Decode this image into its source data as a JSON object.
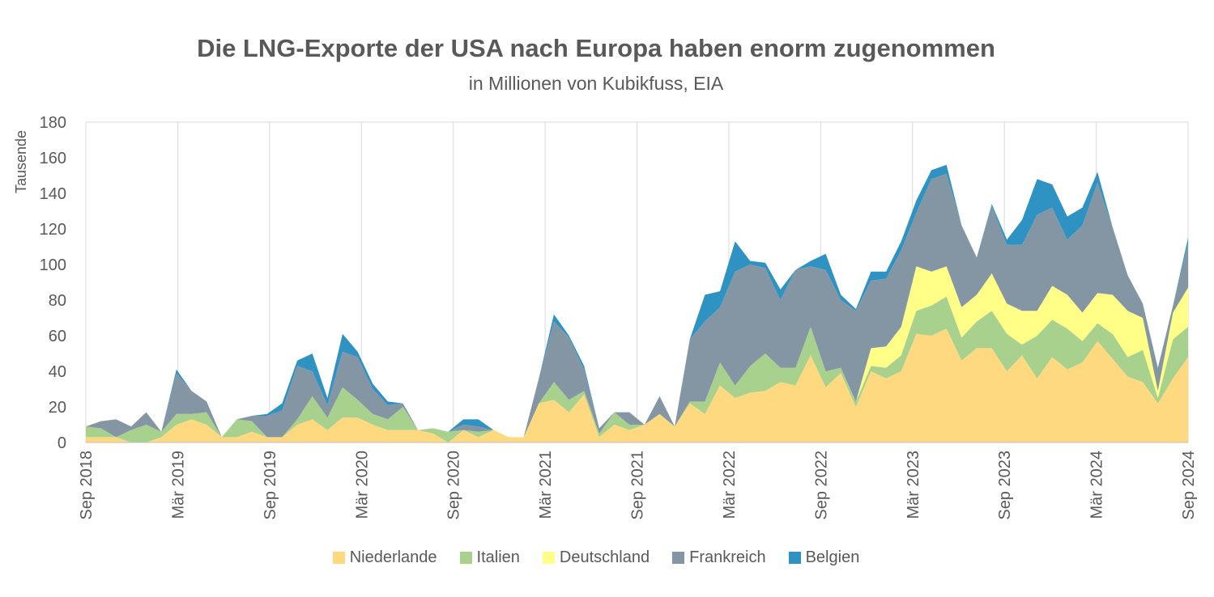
{
  "chart_data": {
    "type": "area",
    "stacked": true,
    "title": "Die LNG-Exporte der USA nach Europa haben enorm zugenommen",
    "subtitle": "in Millionen von Kubikfuss, EIA",
    "ylabel": "Tausende",
    "ylim": [
      0,
      180
    ],
    "yticks": [
      0,
      20,
      40,
      60,
      80,
      100,
      120,
      140,
      160,
      180
    ],
    "xlabel": "",
    "xticks": [
      "Sep 2018",
      "Mär 2019",
      "Sep 2019",
      "Mär 2020",
      "Sep 2020",
      "Mär 2021",
      "Sep 2021",
      "Mär 2022",
      "Sep 2022",
      "Mär 2023",
      "Sep 2023",
      "Mär 2024",
      "Sep 2024"
    ],
    "x_start": "2018-09",
    "x_end": "2024-09",
    "grid": "vertical",
    "legend_position": "bottom",
    "series": [
      {
        "name": "Niederlande",
        "color": "#FFD97F",
        "values": [
          3,
          3,
          3,
          0,
          0,
          3,
          10,
          13,
          10,
          3,
          3,
          6,
          3,
          3,
          10,
          13,
          7,
          14,
          14,
          10,
          7,
          7,
          7,
          5,
          0,
          7,
          3,
          7,
          3,
          3,
          22,
          24,
          17,
          27,
          3,
          10,
          7,
          10,
          16,
          9,
          22,
          16,
          32,
          25,
          28,
          29,
          34,
          32,
          49,
          31,
          39,
          20,
          40,
          36,
          40,
          61,
          60,
          64,
          46,
          53,
          53,
          40,
          49,
          36,
          48,
          41,
          45,
          57,
          47,
          37,
          34,
          22,
          36,
          48
        ]
      },
      {
        "name": "Italien",
        "color": "#A9D18E",
        "values": [
          6,
          5,
          0,
          7,
          10,
          3,
          6,
          3,
          7,
          0,
          10,
          6,
          0,
          0,
          3,
          13,
          7,
          17,
          10,
          6,
          6,
          13,
          0,
          3,
          6,
          0,
          3,
          0,
          0,
          0,
          0,
          10,
          7,
          2,
          2,
          7,
          3,
          0,
          0,
          0,
          1,
          7,
          13,
          7,
          15,
          21,
          8,
          10,
          16,
          9,
          3,
          3,
          3,
          6,
          9,
          13,
          17,
          18,
          13,
          15,
          21,
          21,
          6,
          24,
          21,
          23,
          12,
          10,
          14,
          11,
          18,
          3,
          22,
          17
        ]
      },
      {
        "name": "Deutschland",
        "color": "#FFFF88",
        "values": [
          0,
          0,
          0,
          0,
          0,
          0,
          0,
          0,
          0,
          0,
          0,
          0,
          0,
          0,
          0,
          0,
          0,
          0,
          0,
          0,
          0,
          0,
          0,
          0,
          0,
          0,
          0,
          0,
          0,
          0,
          0,
          0,
          0,
          0,
          0,
          0,
          0,
          0,
          0,
          0,
          0,
          0,
          0,
          0,
          0,
          0,
          0,
          0,
          0,
          0,
          0,
          0,
          10,
          12,
          16,
          25,
          19,
          17,
          17,
          15,
          21,
          17,
          19,
          14,
          19,
          19,
          16,
          17,
          22,
          26,
          18,
          4,
          15,
          22
        ]
      },
      {
        "name": "Frankreich",
        "color": "#8496A4",
        "values": [
          0,
          4,
          10,
          2,
          7,
          0,
          23,
          13,
          6,
          0,
          0,
          3,
          12,
          15,
          30,
          14,
          7,
          20,
          24,
          14,
          8,
          2,
          0,
          0,
          0,
          3,
          3,
          0,
          0,
          0,
          14,
          34,
          35,
          12,
          3,
          0,
          7,
          0,
          10,
          0,
          35,
          45,
          31,
          64,
          57,
          48,
          38,
          55,
          34,
          57,
          38,
          51,
          38,
          38,
          43,
          30,
          52,
          52,
          46,
          21,
          38,
          33,
          37,
          54,
          44,
          31,
          49,
          62,
          38,
          20,
          8,
          13,
          4,
          25
        ]
      },
      {
        "name": "Belgien",
        "color": "#2E93C2",
        "values": [
          0,
          0,
          0,
          0,
          0,
          0,
          2,
          0,
          0,
          0,
          0,
          0,
          1,
          4,
          3,
          10,
          4,
          10,
          3,
          3,
          2,
          0,
          0,
          0,
          0,
          3,
          4,
          0,
          0,
          0,
          0,
          4,
          1,
          2,
          0,
          0,
          0,
          0,
          0,
          0,
          0,
          15,
          9,
          17,
          2,
          3,
          6,
          0,
          3,
          9,
          3,
          1,
          5,
          4,
          5,
          7,
          5,
          5,
          0,
          0,
          1,
          3,
          14,
          20,
          13,
          13,
          10,
          6,
          0,
          0,
          0,
          0,
          0,
          3
        ]
      }
    ]
  },
  "legend": {
    "items": [
      "Niederlande",
      "Italien",
      "Deutschland",
      "Frankreich",
      "Belgien"
    ]
  }
}
